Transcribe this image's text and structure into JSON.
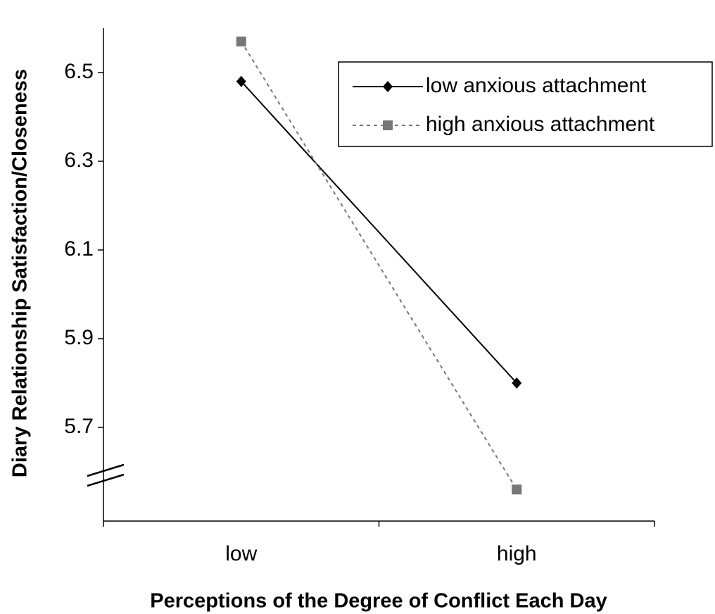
{
  "chart_data": {
    "type": "line",
    "x_label": "Perceptions of the Degree of Conflict Each Day",
    "y_label": "Diary Relationship Satisfaction/Closeness",
    "categories": [
      "low",
      "high"
    ],
    "series": [
      {
        "name": "low anxious attachment",
        "color": "#000000",
        "marker": "diamond",
        "linestyle": "solid",
        "values": [
          6.48,
          5.8
        ]
      },
      {
        "name": "high anxious attachment",
        "color": "#777777",
        "marker": "square",
        "linestyle": "dotted",
        "values": [
          6.57,
          5.56
        ]
      }
    ],
    "ylim": [
      5.5,
      6.6
    ],
    "yticks": [
      5.7,
      5.9,
      6.1,
      6.3,
      6.5
    ],
    "legend": "upper right"
  }
}
